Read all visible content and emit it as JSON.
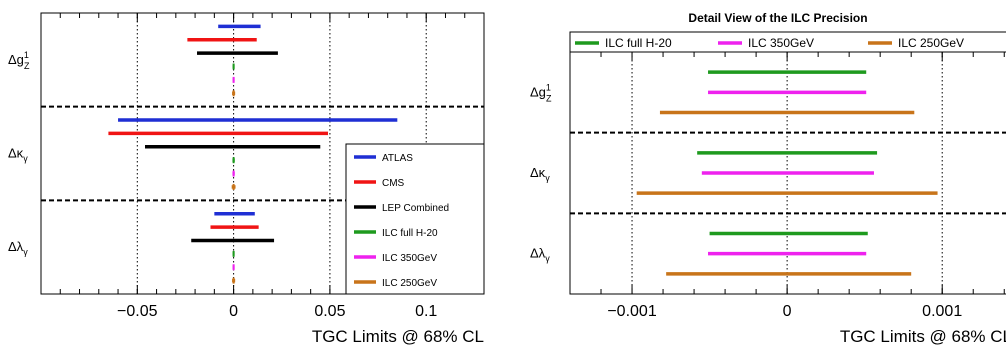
{
  "colors": {
    "ATLAS": "#1f2fd4",
    "CMS": "#f01414",
    "LEP Combined": "#000000",
    "ILC full H-20": "#1e9a1e",
    "ILC 350GeV": "#ee22ee",
    "ILC 250GeV": "#c8741a"
  },
  "chart_data": [
    {
      "type": "interval",
      "title": "",
      "xlabel": "TGC Limits @ 68% CL",
      "xlim": [
        -0.1,
        0.13
      ],
      "xticks": [
        -0.05,
        0,
        0.05,
        0.1
      ],
      "xtick_labels": [
        "−0.05",
        "0",
        "0.05",
        "0.1"
      ],
      "grid": "vertical dotted at major ticks",
      "legend_position": "bottom-right",
      "legend": [
        "ATLAS",
        "CMS",
        "LEP Combined",
        "ILC full H-20",
        "ILC 350GeV",
        "ILC 250GeV"
      ],
      "parameters": [
        {
          "label": "Δg",
          "sup": "1",
          "sub": "Z"
        },
        {
          "label": "Δκ",
          "sup": "",
          "sub": "γ"
        },
        {
          "label": "Δλ",
          "sup": "",
          "sub": "γ"
        }
      ],
      "series": [
        {
          "name": "ATLAS",
          "intervals": [
            [
              -0.008,
              0.014
            ],
            [
              -0.06,
              0.085
            ],
            [
              -0.01,
              0.011
            ]
          ]
        },
        {
          "name": "CMS",
          "intervals": [
            [
              -0.024,
              0.012
            ],
            [
              -0.065,
              0.049
            ],
            [
              -0.012,
              0.013
            ]
          ]
        },
        {
          "name": "LEP Combined",
          "intervals": [
            [
              -0.019,
              0.023
            ],
            [
              -0.046,
              0.045
            ],
            [
              -0.022,
              0.021
            ]
          ]
        },
        {
          "name": "ILC full H-20",
          "intervals": [
            [
              -0.0005,
              0.0005
            ],
            [
              -0.0006,
              0.0006
            ],
            [
              -0.0005,
              0.0005
            ]
          ]
        },
        {
          "name": "ILC 350GeV",
          "intervals": [
            [
              -0.0005,
              0.0005
            ],
            [
              -0.0006,
              0.0006
            ],
            [
              -0.0005,
              0.0005
            ]
          ]
        },
        {
          "name": "ILC 250GeV",
          "intervals": [
            [
              -0.0008,
              0.0008
            ],
            [
              -0.001,
              0.001
            ],
            [
              -0.0008,
              0.0008
            ]
          ]
        }
      ]
    },
    {
      "type": "interval",
      "title": "Detail View of the ILC Precision",
      "xlabel": "TGC Limits @ 68% CL",
      "xlim": [
        -0.0014,
        0.00145
      ],
      "xticks": [
        -0.001,
        0,
        0.001
      ],
      "xtick_labels": [
        "−0.001",
        "0",
        "0.001"
      ],
      "grid": "vertical dotted at major ticks",
      "legend_position": "top",
      "legend": [
        "ILC full H-20",
        "ILC 350GeV",
        "ILC 250GeV"
      ],
      "parameters": [
        {
          "label": "Δg",
          "sup": "1",
          "sub": "Z"
        },
        {
          "label": "Δκ",
          "sup": "",
          "sub": "γ"
        },
        {
          "label": "Δλ",
          "sup": "",
          "sub": "γ"
        }
      ],
      "series": [
        {
          "name": "ILC full H-20",
          "intervals": [
            [
              -0.00051,
              0.00051
            ],
            [
              -0.00058,
              0.00058
            ],
            [
              -0.0005,
              0.00052
            ]
          ]
        },
        {
          "name": "ILC 350GeV",
          "intervals": [
            [
              -0.00051,
              0.00051
            ],
            [
              -0.00055,
              0.00056
            ],
            [
              -0.00051,
              0.00051
            ]
          ]
        },
        {
          "name": "ILC 250GeV",
          "intervals": [
            [
              -0.00082,
              0.00082
            ],
            [
              -0.00097,
              0.00097
            ],
            [
              -0.00078,
              0.0008
            ]
          ]
        }
      ]
    }
  ]
}
